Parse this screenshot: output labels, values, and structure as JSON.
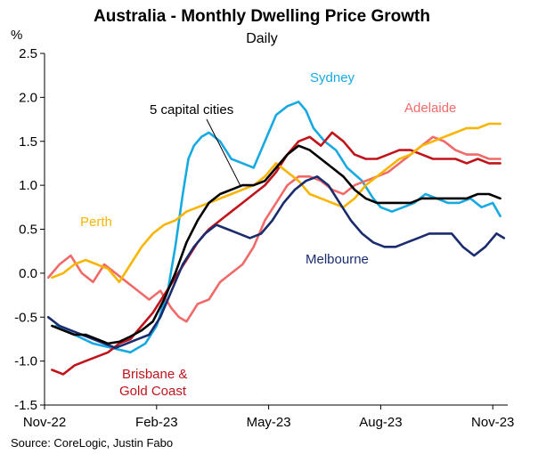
{
  "chart_data": {
    "type": "line",
    "title": "Australia - Monthly Dwelling Price Growth",
    "subtitle": "Daily",
    "ylabel": "%",
    "xlabel": "",
    "ylim": [
      -1.5,
      2.5
    ],
    "yticks": [
      "2.5",
      "2.0",
      "1.5",
      "1.0",
      "0.5",
      "0.0",
      "-0.5",
      "-1.0",
      "-1.5"
    ],
    "ytick_values": [
      2.5,
      2.0,
      1.5,
      1.0,
      0.5,
      0.0,
      -0.5,
      -1.0,
      -1.5
    ],
    "xlim": [
      0,
      12.4
    ],
    "x_tick_labels": [
      "Nov-22",
      "Feb-23",
      "May-23",
      "Aug-23",
      "Nov-23"
    ],
    "x_tick_values": [
      0,
      3,
      6,
      9,
      12
    ],
    "grid": false,
    "legend": "inline labels",
    "source": "Source: CoreLogic, Justin Fabo",
    "annotation": {
      "text": "5 capital cities",
      "arrow_to": [
        5.25,
        0.99
      ]
    },
    "series": [
      {
        "name": "Sydney",
        "label": "Sydney",
        "color": "#17a9e1",
        "label_color": "#17a9e1",
        "x": [
          0.3,
          0.8,
          1.3,
          1.8,
          2.3,
          2.7,
          3.0,
          3.3,
          3.5,
          3.7,
          3.85,
          4.0,
          4.2,
          4.4,
          4.7,
          5.0,
          5.3,
          5.6,
          5.9,
          6.2,
          6.5,
          6.8,
          7.0,
          7.2,
          7.5,
          7.8,
          8.1,
          8.5,
          8.8,
          9.0,
          9.3,
          9.6,
          9.9,
          10.2,
          10.5,
          10.8,
          11.1,
          11.4,
          11.7,
          12.0,
          12.2
        ],
        "y": [
          -0.6,
          -0.7,
          -0.8,
          -0.85,
          -0.9,
          -0.8,
          -0.6,
          -0.2,
          0.3,
          0.9,
          1.3,
          1.45,
          1.55,
          1.6,
          1.5,
          1.3,
          1.25,
          1.2,
          1.5,
          1.8,
          1.9,
          1.95,
          1.85,
          1.65,
          1.5,
          1.4,
          1.2,
          1.05,
          0.85,
          0.75,
          0.7,
          0.75,
          0.8,
          0.9,
          0.85,
          0.8,
          0.8,
          0.85,
          0.75,
          0.8,
          0.65
        ]
      },
      {
        "name": "Adelaide",
        "label": "Adelaide",
        "color": "#f06a6a",
        "label_color": "#f06a6a",
        "x": [
          0.1,
          0.4,
          0.7,
          1.0,
          1.3,
          1.6,
          1.9,
          2.2,
          2.5,
          2.8,
          3.1,
          3.4,
          3.6,
          3.8,
          4.1,
          4.4,
          4.7,
          5.0,
          5.3,
          5.6,
          5.9,
          6.2,
          6.5,
          6.8,
          7.1,
          7.4,
          7.7,
          8.0,
          8.3,
          8.6,
          8.9,
          9.2,
          9.5,
          9.8,
          10.1,
          10.4,
          10.7,
          11.0,
          11.3,
          11.6,
          11.9,
          12.2
        ],
        "y": [
          -0.05,
          0.1,
          0.2,
          0.0,
          -0.1,
          0.1,
          0.0,
          -0.1,
          -0.2,
          -0.3,
          -0.2,
          -0.4,
          -0.5,
          -0.55,
          -0.35,
          -0.3,
          -0.1,
          0.0,
          0.1,
          0.3,
          0.6,
          0.8,
          1.0,
          1.1,
          1.1,
          1.05,
          0.95,
          0.9,
          1.0,
          1.05,
          1.1,
          1.15,
          1.25,
          1.35,
          1.45,
          1.55,
          1.5,
          1.4,
          1.35,
          1.35,
          1.3,
          1.3
        ]
      },
      {
        "name": "Brisbane & Gold Coast",
        "label": "Brisbane &|Gold Coast",
        "color": "#c0141b",
        "label_color": "#c0141b",
        "x": [
          0.2,
          0.5,
          0.8,
          1.1,
          1.4,
          1.7,
          2.0,
          2.3,
          2.6,
          2.9,
          3.2,
          3.5,
          3.8,
          4.1,
          4.4,
          4.7,
          5.0,
          5.3,
          5.6,
          5.9,
          6.2,
          6.5,
          6.8,
          7.1,
          7.4,
          7.7,
          8.0,
          8.3,
          8.6,
          8.9,
          9.2,
          9.5,
          9.8,
          10.1,
          10.4,
          10.7,
          11.0,
          11.3,
          11.6,
          11.9,
          12.2
        ],
        "y": [
          -1.1,
          -1.15,
          -1.05,
          -1.0,
          -0.95,
          -0.9,
          -0.8,
          -0.75,
          -0.6,
          -0.45,
          -0.25,
          -0.05,
          0.15,
          0.35,
          0.5,
          0.6,
          0.7,
          0.8,
          0.9,
          1.0,
          1.15,
          1.35,
          1.5,
          1.55,
          1.45,
          1.6,
          1.5,
          1.35,
          1.3,
          1.3,
          1.35,
          1.4,
          1.4,
          1.35,
          1.3,
          1.3,
          1.3,
          1.25,
          1.3,
          1.25,
          1.25
        ]
      },
      {
        "name": "Perth",
        "label": "Perth",
        "color": "#f7b500",
        "label_color": "#f7b500",
        "x": [
          0.2,
          0.5,
          0.8,
          1.1,
          1.4,
          1.7,
          2.0,
          2.3,
          2.6,
          2.9,
          3.2,
          3.5,
          3.8,
          4.1,
          4.4,
          4.7,
          5.0,
          5.3,
          5.6,
          5.9,
          6.2,
          6.5,
          6.8,
          7.1,
          7.4,
          7.7,
          8.0,
          8.3,
          8.6,
          8.9,
          9.2,
          9.5,
          9.8,
          10.1,
          10.4,
          10.7,
          11.0,
          11.3,
          11.6,
          11.9,
          12.2
        ],
        "y": [
          -0.05,
          0.0,
          0.1,
          0.15,
          0.1,
          0.05,
          -0.1,
          0.1,
          0.3,
          0.45,
          0.55,
          0.6,
          0.7,
          0.75,
          0.8,
          0.85,
          0.9,
          0.95,
          1.0,
          1.1,
          1.25,
          1.15,
          1.05,
          0.9,
          0.85,
          0.8,
          0.75,
          0.85,
          1.0,
          1.1,
          1.2,
          1.3,
          1.35,
          1.45,
          1.5,
          1.55,
          1.6,
          1.65,
          1.65,
          1.7,
          1.7
        ]
      },
      {
        "name": "Melbourne",
        "label": "Melbourne",
        "color": "#1a2b6e",
        "label_color": "#1a2b6e",
        "x": [
          0.1,
          0.4,
          0.7,
          1.0,
          1.3,
          1.6,
          1.9,
          2.2,
          2.5,
          2.8,
          3.1,
          3.4,
          3.7,
          4.0,
          4.3,
          4.6,
          4.9,
          5.2,
          5.5,
          5.8,
          6.1,
          6.4,
          6.7,
          7.0,
          7.3,
          7.6,
          7.9,
          8.2,
          8.5,
          8.8,
          9.1,
          9.4,
          9.7,
          10.0,
          10.3,
          10.6,
          10.9,
          11.2,
          11.5,
          11.8,
          12.1,
          12.3
        ],
        "y": [
          -0.5,
          -0.6,
          -0.65,
          -0.7,
          -0.75,
          -0.8,
          -0.85,
          -0.8,
          -0.75,
          -0.7,
          -0.5,
          -0.2,
          0.1,
          0.3,
          0.45,
          0.55,
          0.5,
          0.45,
          0.4,
          0.45,
          0.6,
          0.8,
          0.95,
          1.05,
          1.1,
          1.0,
          0.8,
          0.6,
          0.45,
          0.35,
          0.3,
          0.3,
          0.35,
          0.4,
          0.45,
          0.45,
          0.45,
          0.3,
          0.2,
          0.3,
          0.45,
          0.4
        ]
      },
      {
        "name": "5 capital cities",
        "label": "",
        "color": "#000000",
        "label_color": "#000000",
        "x": [
          0.2,
          0.5,
          0.8,
          1.1,
          1.4,
          1.7,
          2.0,
          2.3,
          2.6,
          2.9,
          3.2,
          3.5,
          3.8,
          4.1,
          4.4,
          4.7,
          5.0,
          5.3,
          5.6,
          5.9,
          6.2,
          6.5,
          6.8,
          7.1,
          7.4,
          7.7,
          8.0,
          8.3,
          8.6,
          8.9,
          9.2,
          9.5,
          9.8,
          10.1,
          10.4,
          10.7,
          11.0,
          11.3,
          11.6,
          11.9,
          12.2
        ],
        "y": [
          -0.6,
          -0.65,
          -0.7,
          -0.7,
          -0.75,
          -0.8,
          -0.78,
          -0.72,
          -0.65,
          -0.55,
          -0.3,
          0.0,
          0.35,
          0.6,
          0.8,
          0.9,
          0.95,
          1.0,
          1.0,
          1.05,
          1.2,
          1.35,
          1.45,
          1.4,
          1.3,
          1.2,
          1.1,
          0.95,
          0.85,
          0.8,
          0.8,
          0.8,
          0.8,
          0.85,
          0.85,
          0.85,
          0.85,
          0.85,
          0.9,
          0.9,
          0.85
        ]
      }
    ]
  }
}
